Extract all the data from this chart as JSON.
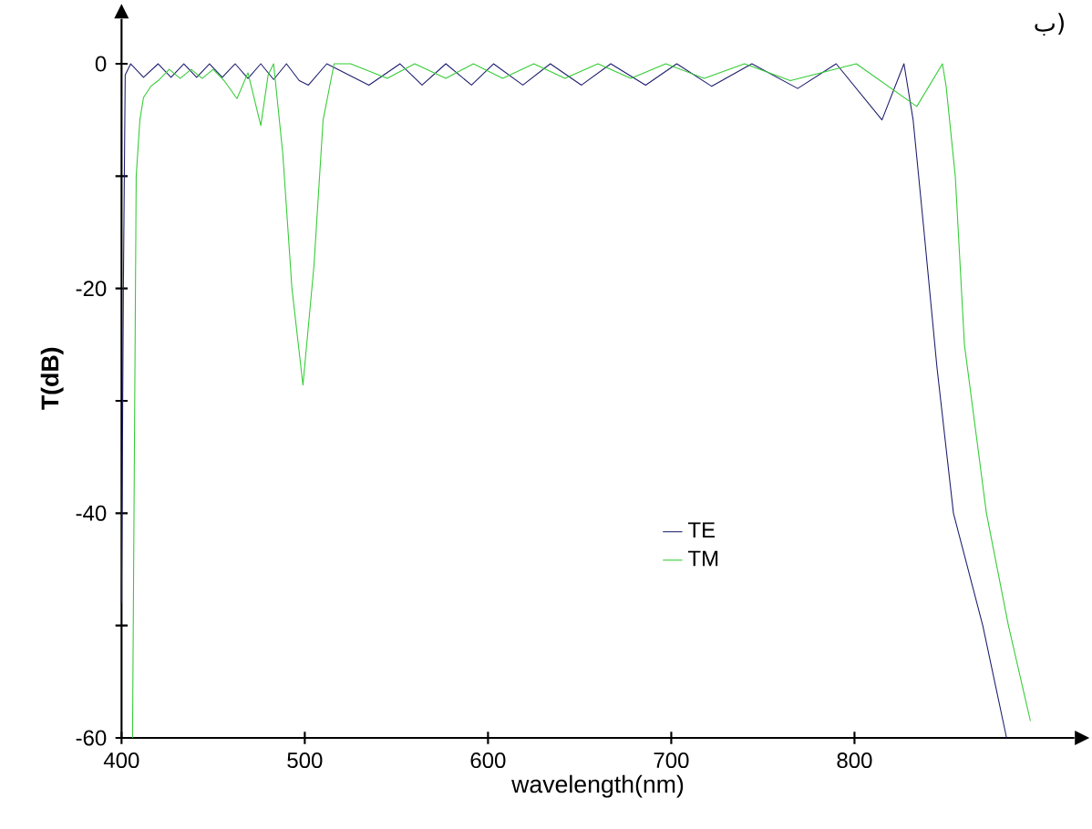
{
  "chart_data": {
    "type": "line",
    "xlabel": "wavelength(nm)",
    "ylabel": "T(dB)",
    "annotations": [
      "ب)"
    ],
    "xlim": [
      400,
      920
    ],
    "ylim": [
      -60,
      4
    ],
    "xticks": [
      400,
      500,
      600,
      700,
      800
    ],
    "yticks": [
      -60,
      {
        "value": -50,
        "label": null
      },
      -40,
      {
        "value": -30,
        "label": null
      },
      -20,
      {
        "value": -10,
        "label": null
      },
      0
    ],
    "legend": "bottom",
    "grid": false,
    "marker": "none",
    "line_style": "solid",
    "series": [
      {
        "name": "TE",
        "color": "#1c1c6e",
        "x": [
          400,
          401,
          402,
          405,
          412,
          420,
          427,
          434,
          441,
          448,
          455,
          462,
          469,
          476,
          483,
          490,
          497,
          502,
          512,
          535,
          552,
          564,
          577,
          591,
          603,
          619,
          634,
          651,
          667,
          686,
          703,
          722,
          744,
          769,
          790,
          815,
          827,
          832,
          838,
          845,
          854,
          870,
          883
        ],
        "values": [
          -48,
          -20,
          -1,
          0,
          -1.2,
          0,
          -1.2,
          0,
          -1.2,
          0,
          -1.2,
          0,
          -1.3,
          0,
          -1.4,
          0,
          -1.5,
          -1.9,
          0,
          -1.9,
          0,
          -1.9,
          0,
          -1.9,
          0,
          -1.9,
          0,
          -1.9,
          0,
          -1.9,
          0,
          -2,
          0,
          -2.2,
          0,
          -5,
          0,
          -5,
          -15,
          -27,
          -40,
          -50,
          -60
        ]
      },
      {
        "name": "TM",
        "color": "#33cc33",
        "x": [
          406,
          408,
          410,
          412,
          416,
          420,
          426,
          432,
          438,
          444,
          450,
          456,
          463,
          469,
          476,
          480,
          483,
          488,
          493,
          499,
          505,
          510,
          516,
          525,
          545,
          560,
          577,
          592,
          608,
          625,
          642,
          660,
          678,
          697,
          718,
          740,
          765,
          801,
          834,
          848,
          850,
          855,
          860,
          872,
          884,
          896
        ],
        "values": [
          -60,
          -10,
          -5,
          -3,
          -2,
          -1.5,
          -0.5,
          -1.3,
          -0.5,
          -1.3,
          -0.5,
          -1.5,
          -3.1,
          -0.8,
          -5.5,
          -1,
          0,
          -8,
          -20,
          -28.6,
          -18,
          -5,
          0,
          0,
          -1.3,
          0,
          -1.3,
          0,
          -1.3,
          0,
          -1.3,
          0,
          -1.3,
          0,
          -1.3,
          0,
          -1.5,
          0,
          -3.8,
          0,
          -2,
          -10,
          -25,
          -40,
          -50,
          -58.5
        ]
      }
    ]
  }
}
